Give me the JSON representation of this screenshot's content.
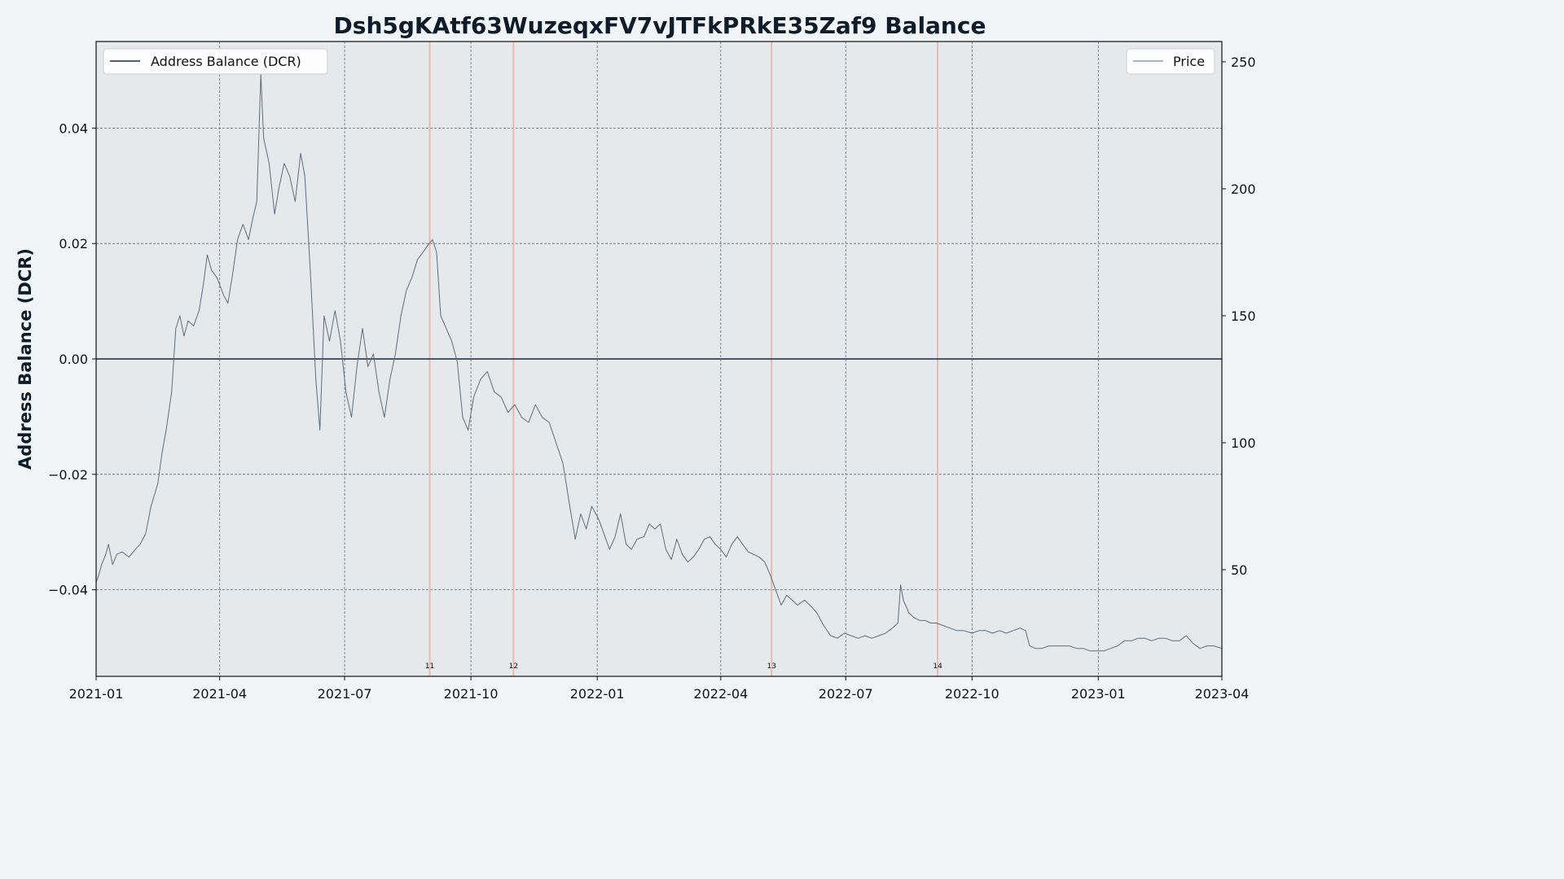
{
  "chart_data": {
    "type": "line",
    "title": "Dsh5gKAtf63WuzeqxFV7vJTFkPRkE35Zaf9 Balance",
    "ylabel": "Address Balance (DCR)",
    "xlabel": "",
    "x_range": [
      "2021-01-01",
      "2023-04-01"
    ],
    "x_ticks": [
      "2021-01",
      "2021-04",
      "2021-07",
      "2021-10",
      "2022-01",
      "2022-04",
      "2022-07",
      "2022-10",
      "2023-01",
      "2023-04"
    ],
    "ylim": [
      -0.055,
      0.055
    ],
    "y_ticks": [
      -0.04,
      -0.02,
      0.0,
      0.02,
      0.04
    ],
    "y_tick_labels": [
      "−0.04",
      "−0.02",
      "0.00",
      "0.02",
      "0.04"
    ],
    "y2lim": [
      8,
      258
    ],
    "y2_ticks": [
      50,
      100,
      150,
      200,
      250
    ],
    "grid": true,
    "legend": [
      {
        "name": "Address Balance (DCR)",
        "placement": "top-left",
        "color": "#1b263b"
      },
      {
        "name": "Price",
        "placement": "top-right",
        "color": "#5d6d7e"
      }
    ],
    "series": [
      {
        "name": "Address Balance (DCR)",
        "axis": "left",
        "color": "#1b263b",
        "points": [
          [
            "2021-01-01",
            0.0
          ],
          [
            "2023-04-01",
            0.0
          ]
        ]
      },
      {
        "name": "Price",
        "axis": "right",
        "color": "#5d6d7e",
        "points": [
          [
            "2021-01-01",
            45
          ],
          [
            "2021-01-03",
            48
          ],
          [
            "2021-01-05",
            52
          ],
          [
            "2021-01-08",
            56
          ],
          [
            "2021-01-10",
            60
          ],
          [
            "2021-01-13",
            52
          ],
          [
            "2021-01-16",
            56
          ],
          [
            "2021-01-20",
            57
          ],
          [
            "2021-01-25",
            55
          ],
          [
            "2021-01-28",
            57
          ],
          [
            "2021-02-02",
            60
          ],
          [
            "2021-02-06",
            64
          ],
          [
            "2021-02-10",
            75
          ],
          [
            "2021-02-15",
            84
          ],
          [
            "2021-02-18",
            96
          ],
          [
            "2021-02-21",
            105
          ],
          [
            "2021-02-25",
            120
          ],
          [
            "2021-02-28",
            145
          ],
          [
            "2021-03-03",
            150
          ],
          [
            "2021-03-06",
            142
          ],
          [
            "2021-03-09",
            148
          ],
          [
            "2021-03-13",
            146
          ],
          [
            "2021-03-17",
            152
          ],
          [
            "2021-03-20",
            162
          ],
          [
            "2021-03-23",
            174
          ],
          [
            "2021-03-26",
            168
          ],
          [
            "2021-03-30",
            165
          ],
          [
            "2021-04-04",
            158
          ],
          [
            "2021-04-07",
            155
          ],
          [
            "2021-04-10",
            165
          ],
          [
            "2021-04-14",
            180
          ],
          [
            "2021-04-18",
            186
          ],
          [
            "2021-04-22",
            180
          ],
          [
            "2021-04-25",
            188
          ],
          [
            "2021-04-28",
            195
          ],
          [
            "2021-05-01",
            245
          ],
          [
            "2021-05-03",
            220
          ],
          [
            "2021-05-07",
            210
          ],
          [
            "2021-05-11",
            190
          ],
          [
            "2021-05-14",
            200
          ],
          [
            "2021-05-18",
            210
          ],
          [
            "2021-05-22",
            205
          ],
          [
            "2021-05-26",
            195
          ],
          [
            "2021-05-30",
            214
          ],
          [
            "2021-06-02",
            205
          ],
          [
            "2021-06-06",
            168
          ],
          [
            "2021-06-10",
            125
          ],
          [
            "2021-06-13",
            105
          ],
          [
            "2021-06-16",
            150
          ],
          [
            "2021-06-20",
            140
          ],
          [
            "2021-06-24",
            152
          ],
          [
            "2021-06-28",
            140
          ],
          [
            "2021-07-02",
            120
          ],
          [
            "2021-07-06",
            110
          ],
          [
            "2021-07-10",
            130
          ],
          [
            "2021-07-14",
            145
          ],
          [
            "2021-07-18",
            130
          ],
          [
            "2021-07-22",
            135
          ],
          [
            "2021-07-26",
            120
          ],
          [
            "2021-07-30",
            110
          ],
          [
            "2021-08-03",
            125
          ],
          [
            "2021-08-07",
            135
          ],
          [
            "2021-08-11",
            150
          ],
          [
            "2021-08-15",
            160
          ],
          [
            "2021-08-19",
            165
          ],
          [
            "2021-08-23",
            172
          ],
          [
            "2021-08-27",
            175
          ],
          [
            "2021-08-31",
            178
          ],
          [
            "2021-09-03",
            180
          ],
          [
            "2021-09-06",
            175
          ],
          [
            "2021-09-09",
            150
          ],
          [
            "2021-09-13",
            145
          ],
          [
            "2021-09-17",
            140
          ],
          [
            "2021-09-21",
            132
          ],
          [
            "2021-09-25",
            110
          ],
          [
            "2021-09-29",
            105
          ],
          [
            "2021-10-03",
            118
          ],
          [
            "2021-10-08",
            125
          ],
          [
            "2021-10-13",
            128
          ],
          [
            "2021-10-18",
            120
          ],
          [
            "2021-10-23",
            118
          ],
          [
            "2021-10-28",
            112
          ],
          [
            "2021-11-02",
            115
          ],
          [
            "2021-11-07",
            110
          ],
          [
            "2021-11-12",
            108
          ],
          [
            "2021-11-17",
            115
          ],
          [
            "2021-11-22",
            110
          ],
          [
            "2021-11-27",
            108
          ],
          [
            "2021-12-02",
            100
          ],
          [
            "2021-12-07",
            92
          ],
          [
            "2021-12-12",
            75
          ],
          [
            "2021-12-16",
            62
          ],
          [
            "2021-12-20",
            72
          ],
          [
            "2021-12-24",
            66
          ],
          [
            "2021-12-28",
            75
          ],
          [
            "2022-01-02",
            70
          ],
          [
            "2022-01-06",
            64
          ],
          [
            "2022-01-10",
            58
          ],
          [
            "2022-01-14",
            63
          ],
          [
            "2022-01-18",
            72
          ],
          [
            "2022-01-22",
            60
          ],
          [
            "2022-01-26",
            58
          ],
          [
            "2022-01-30",
            62
          ],
          [
            "2022-02-04",
            63
          ],
          [
            "2022-02-08",
            68
          ],
          [
            "2022-02-12",
            66
          ],
          [
            "2022-02-16",
            68
          ],
          [
            "2022-02-20",
            58
          ],
          [
            "2022-02-24",
            54
          ],
          [
            "2022-02-28",
            62
          ],
          [
            "2022-03-04",
            56
          ],
          [
            "2022-03-08",
            53
          ],
          [
            "2022-03-12",
            55
          ],
          [
            "2022-03-16",
            58
          ],
          [
            "2022-03-20",
            62
          ],
          [
            "2022-03-24",
            63
          ],
          [
            "2022-03-28",
            60
          ],
          [
            "2022-04-01",
            58
          ],
          [
            "2022-04-05",
            55
          ],
          [
            "2022-04-09",
            60
          ],
          [
            "2022-04-13",
            63
          ],
          [
            "2022-04-17",
            60
          ],
          [
            "2022-04-21",
            57
          ],
          [
            "2022-04-25",
            56
          ],
          [
            "2022-04-29",
            55
          ],
          [
            "2022-05-03",
            53
          ],
          [
            "2022-05-07",
            48
          ],
          [
            "2022-05-11",
            42
          ],
          [
            "2022-05-15",
            36
          ],
          [
            "2022-05-19",
            40
          ],
          [
            "2022-05-23",
            38
          ],
          [
            "2022-05-27",
            36
          ],
          [
            "2022-06-01",
            38
          ],
          [
            "2022-06-05",
            36
          ],
          [
            "2022-06-10",
            33
          ],
          [
            "2022-06-15",
            28
          ],
          [
            "2022-06-20",
            24
          ],
          [
            "2022-06-25",
            23
          ],
          [
            "2022-06-30",
            25
          ],
          [
            "2022-07-05",
            24
          ],
          [
            "2022-07-10",
            23
          ],
          [
            "2022-07-15",
            24
          ],
          [
            "2022-07-20",
            23
          ],
          [
            "2022-07-25",
            24
          ],
          [
            "2022-07-30",
            25
          ],
          [
            "2022-08-04",
            27
          ],
          [
            "2022-08-08",
            29
          ],
          [
            "2022-08-10",
            44
          ],
          [
            "2022-08-12",
            38
          ],
          [
            "2022-08-16",
            33
          ],
          [
            "2022-08-20",
            31
          ],
          [
            "2022-08-24",
            30
          ],
          [
            "2022-08-28",
            30
          ],
          [
            "2022-09-01",
            29
          ],
          [
            "2022-09-05",
            29
          ],
          [
            "2022-09-10",
            28
          ],
          [
            "2022-09-15",
            27
          ],
          [
            "2022-09-20",
            26
          ],
          [
            "2022-09-25",
            26
          ],
          [
            "2022-10-01",
            25
          ],
          [
            "2022-10-06",
            26
          ],
          [
            "2022-10-11",
            26
          ],
          [
            "2022-10-16",
            25
          ],
          [
            "2022-10-21",
            26
          ],
          [
            "2022-10-26",
            25
          ],
          [
            "2022-10-31",
            26
          ],
          [
            "2022-11-05",
            27
          ],
          [
            "2022-11-09",
            26
          ],
          [
            "2022-11-12",
            20
          ],
          [
            "2022-11-16",
            19
          ],
          [
            "2022-11-21",
            19
          ],
          [
            "2022-11-26",
            20
          ],
          [
            "2022-12-01",
            20
          ],
          [
            "2022-12-06",
            20
          ],
          [
            "2022-12-11",
            20
          ],
          [
            "2022-12-16",
            19
          ],
          [
            "2022-12-21",
            19
          ],
          [
            "2022-12-26",
            18
          ],
          [
            "2022-12-31",
            18
          ],
          [
            "2023-01-05",
            18
          ],
          [
            "2023-01-10",
            19
          ],
          [
            "2023-01-15",
            20
          ],
          [
            "2023-01-20",
            22
          ],
          [
            "2023-01-25",
            22
          ],
          [
            "2023-01-30",
            23
          ],
          [
            "2023-02-04",
            23
          ],
          [
            "2023-02-09",
            22
          ],
          [
            "2023-02-14",
            23
          ],
          [
            "2023-02-19",
            23
          ],
          [
            "2023-02-24",
            22
          ],
          [
            "2023-03-01",
            22
          ],
          [
            "2023-03-06",
            24
          ],
          [
            "2023-03-11",
            21
          ],
          [
            "2023-03-16",
            19
          ],
          [
            "2023-03-21",
            20
          ],
          [
            "2023-03-26",
            20
          ],
          [
            "2023-04-01",
            19
          ]
        ]
      }
    ],
    "annotations": [
      {
        "label": "11",
        "x": "2021-09-01",
        "type": "vertical-line",
        "color": "#e8b4a4"
      },
      {
        "label": "12",
        "x": "2021-11-01",
        "type": "vertical-line",
        "color": "#e8b4a4"
      },
      {
        "label": "13",
        "x": "2022-05-08",
        "type": "vertical-line",
        "color": "#e8b4a4"
      },
      {
        "label": "14",
        "x": "2022-09-06",
        "type": "vertical-line",
        "color": "#e8b4a4"
      }
    ],
    "colors": {
      "plot_background": "#e6e9ec",
      "page_background": "#f2f5f7",
      "grid": "#5d6d7e",
      "event_line": "#e8b4a4"
    }
  }
}
